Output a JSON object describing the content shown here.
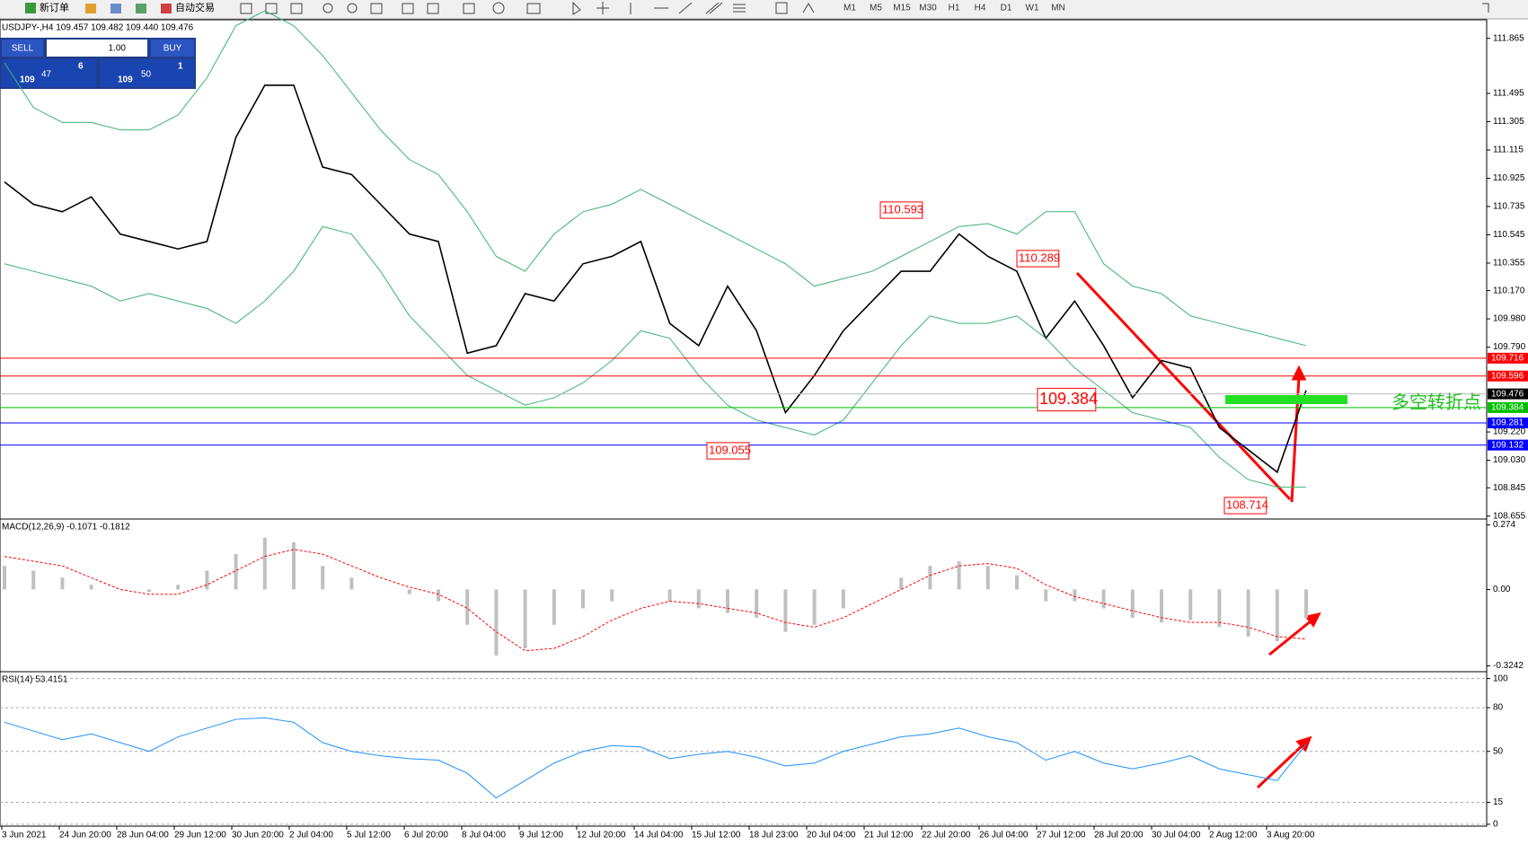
{
  "toolbar": {
    "new_order": "新订单",
    "auto_trade": "自动交易",
    "timeframes": [
      "M1",
      "M5",
      "M15",
      "M30",
      "H1",
      "H4",
      "D1",
      "W1",
      "MN"
    ]
  },
  "trade_panel": {
    "sell": "SELL",
    "lot": "1.00",
    "buy": "BUY",
    "bid_big": "109",
    "bid_main": "47",
    "bid_small": "6",
    "ask_big": "109",
    "ask_main": "50",
    "ask_small": "1"
  },
  "chart_data": [
    {
      "type": "line",
      "title": "USDJPY-,H4 109.457 109.482 109.440 109.476",
      "ylim": [
        108.635,
        111.99
      ],
      "yticks": [
        111.865,
        111.495,
        111.305,
        111.115,
        110.925,
        110.735,
        110.545,
        110.355,
        {
          "value": 110.17,
          "label": "110.170"
        },
        {
          "value": 109.98,
          "label": "109.980"
        },
        {
          "value": 109.79,
          "label": "109.790"
        },
        {
          "value": 109.22,
          "label": "109.220"
        },
        {
          "value": 109.03,
          "label": "109.030"
        },
        108.845,
        108.655
      ],
      "series": [
        {
          "color": "#000000",
          "values": [
            110.9,
            110.75,
            110.7,
            110.8,
            110.55,
            110.5,
            110.45,
            110.5,
            111.2,
            111.55,
            111.55,
            111.0,
            110.95,
            110.75,
            110.55,
            110.5,
            109.75,
            109.8,
            110.15,
            110.1,
            110.35,
            110.4,
            110.5,
            109.95,
            109.8,
            110.2,
            109.9,
            109.35,
            109.6,
            109.9,
            110.1,
            110.3,
            110.3,
            110.55,
            110.4,
            110.3,
            109.85,
            110.1,
            109.8,
            109.45,
            109.7,
            109.65,
            109.25,
            109.1,
            108.95,
            109.5
          ]
        },
        {
          "color": "#3cb371",
          "values": [
            111.7,
            111.4,
            111.3,
            111.3,
            111.25,
            111.25,
            111.35,
            111.6,
            111.95,
            112.05,
            111.95,
            111.75,
            111.5,
            111.25,
            111.05,
            110.95,
            110.7,
            110.4,
            110.3,
            110.55,
            110.7,
            110.75,
            110.85,
            110.75,
            110.65,
            110.55,
            110.45,
            110.35,
            110.2,
            110.25,
            110.3,
            110.4,
            110.5,
            110.6,
            110.62,
            110.55,
            110.7,
            110.7,
            110.35,
            110.2,
            110.15,
            110.0,
            109.95,
            109.9,
            109.85,
            109.8
          ]
        },
        {
          "color": "#3cb371",
          "values": [
            110.35,
            110.3,
            110.25,
            110.2,
            110.1,
            110.15,
            110.1,
            110.05,
            109.95,
            110.1,
            110.3,
            110.6,
            110.55,
            110.3,
            110.0,
            109.8,
            109.6,
            109.5,
            109.4,
            109.45,
            109.55,
            109.7,
            109.9,
            109.85,
            109.6,
            109.4,
            109.3,
            109.25,
            109.2,
            109.3,
            109.55,
            109.8,
            110.0,
            109.95,
            109.95,
            110.0,
            109.85,
            109.65,
            109.5,
            109.35,
            109.3,
            109.25,
            109.05,
            108.9,
            108.85,
            108.85
          ]
        }
      ],
      "levels": {
        "values": [
          109.716,
          109.596,
          109.476,
          109.384,
          109.281,
          109.132
        ],
        "colors": [
          "#ff0000",
          "#ff0000",
          "#000000",
          "#00c000",
          "#0000ff",
          "#0000ff"
        ]
      },
      "annotations": [
        110.593,
        110.289,
        109.384,
        109.055,
        108.714
      ],
      "note": "多空转折点",
      "x_labels": [
        "3 Jun 2021",
        "24 Jun 20:00",
        "28 Jun 04:00",
        "29 Jun 12:00",
        "30 Jun 20:00",
        "2 Jul 04:00",
        "5 Jul 12:00",
        "6 Jul 20:00",
        "8 Jul 04:00",
        "9 Jul 12:00",
        "12 Jul 20:00",
        "14 Jul 04:00",
        "15 Jul 12:00",
        "18 Jul 23:00",
        "20 Jul 04:00",
        "21 Jul 12:00",
        "22 Jul 20:00",
        "26 Jul 04:00",
        "27 Jul 12:00",
        "28 Jul 20:00",
        "30 Jul 04:00",
        "2 Aug 12:00",
        "3 Aug 20:00"
      ]
    },
    {
      "type": "bar",
      "title": "MACD(12,26,9) -0.1071 -0.1812",
      "ylim": [
        -0.349,
        0.299
      ],
      "yticks": [
        0.274,
        {
          "value": 0,
          "label": "0.00"
        },
        -0.3242
      ],
      "series": [
        {
          "type": "bar",
          "color": "#c0c0c0",
          "values": [
            0.1,
            0.08,
            0.05,
            0.02,
            0.0,
            -0.01,
            0.02,
            0.08,
            0.15,
            0.22,
            0.2,
            0.1,
            0.05,
            0.0,
            -0.02,
            -0.05,
            -0.15,
            -0.28,
            -0.25,
            -0.15,
            -0.08,
            -0.05,
            0.0,
            -0.05,
            -0.08,
            -0.1,
            -0.12,
            -0.18,
            -0.15,
            -0.08,
            0.0,
            0.05,
            0.1,
            0.12,
            0.1,
            0.06,
            -0.05,
            -0.05,
            -0.08,
            -0.12,
            -0.14,
            -0.13,
            -0.16,
            -0.2,
            -0.22,
            -0.12
          ]
        },
        {
          "type": "line",
          "color": "#ff0000",
          "values": [
            0.14,
            0.12,
            0.1,
            0.05,
            0.0,
            -0.02,
            -0.02,
            0.02,
            0.08,
            0.14,
            0.17,
            0.15,
            0.1,
            0.05,
            0.01,
            -0.02,
            -0.08,
            -0.18,
            -0.26,
            -0.25,
            -0.2,
            -0.13,
            -0.08,
            -0.05,
            -0.06,
            -0.08,
            -0.1,
            -0.14,
            -0.16,
            -0.12,
            -0.06,
            0.0,
            0.06,
            0.1,
            0.11,
            0.09,
            0.02,
            -0.03,
            -0.06,
            -0.09,
            -0.12,
            -0.14,
            -0.14,
            -0.16,
            -0.2,
            -0.21
          ]
        }
      ]
    },
    {
      "type": "line",
      "title": "RSI(14) 53.4151",
      "ylim": [
        -1.3,
        104.7
      ],
      "yticks": [
        100,
        80,
        50,
        15,
        0
      ],
      "grid": true,
      "series": [
        {
          "color": "#1e90ff",
          "values": [
            70,
            64,
            58,
            62,
            56,
            50,
            60,
            66,
            72,
            73,
            70,
            56,
            50,
            47,
            45,
            44,
            35,
            18,
            30,
            42,
            50,
            54,
            53,
            45,
            48,
            50,
            46,
            40,
            42,
            50,
            55,
            60,
            62,
            66,
            60,
            56,
            44,
            50,
            42,
            38,
            42,
            47,
            38,
            34,
            30,
            55
          ]
        }
      ]
    }
  ]
}
